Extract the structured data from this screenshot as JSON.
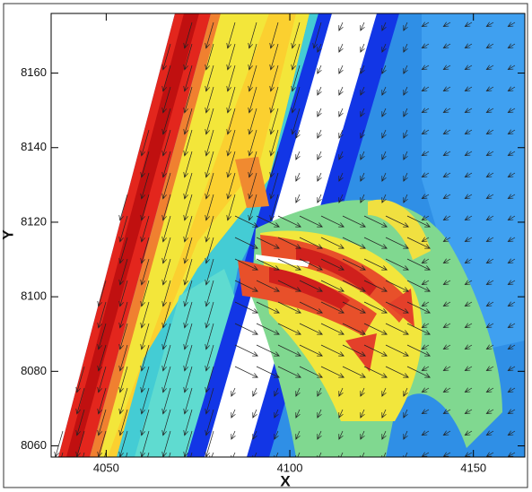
{
  "chart_data": {
    "type": "contour",
    "xlabel": "X",
    "ylabel": "Y",
    "xlim": [
      4035,
      4164
    ],
    "ylim": [
      8057,
      8176
    ],
    "xticks": [
      4050,
      4100,
      4150
    ],
    "yticks": [
      8060,
      8080,
      8100,
      8120,
      8140,
      8160
    ]
  }
}
